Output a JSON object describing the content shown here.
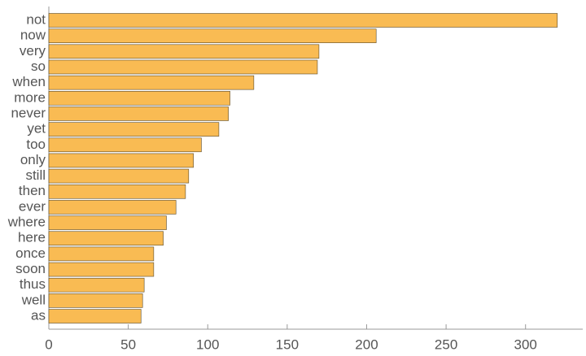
{
  "chart_data": {
    "type": "barh",
    "categories": [
      "not",
      "now",
      "very",
      "so",
      "when",
      "more",
      "never",
      "yet",
      "too",
      "only",
      "still",
      "then",
      "ever",
      "where",
      "here",
      "once",
      "soon",
      "thus",
      "well",
      "as"
    ],
    "values": [
      320,
      206,
      170,
      169,
      129,
      114,
      113,
      107,
      96,
      91,
      88,
      86,
      80,
      74,
      72,
      66,
      66,
      60,
      59,
      58
    ],
    "color": "#f9bb53",
    "xlim": [
      0,
      336
    ],
    "xticks": [
      0,
      50,
      100,
      150,
      200,
      250,
      300
    ],
    "grid": false
  }
}
